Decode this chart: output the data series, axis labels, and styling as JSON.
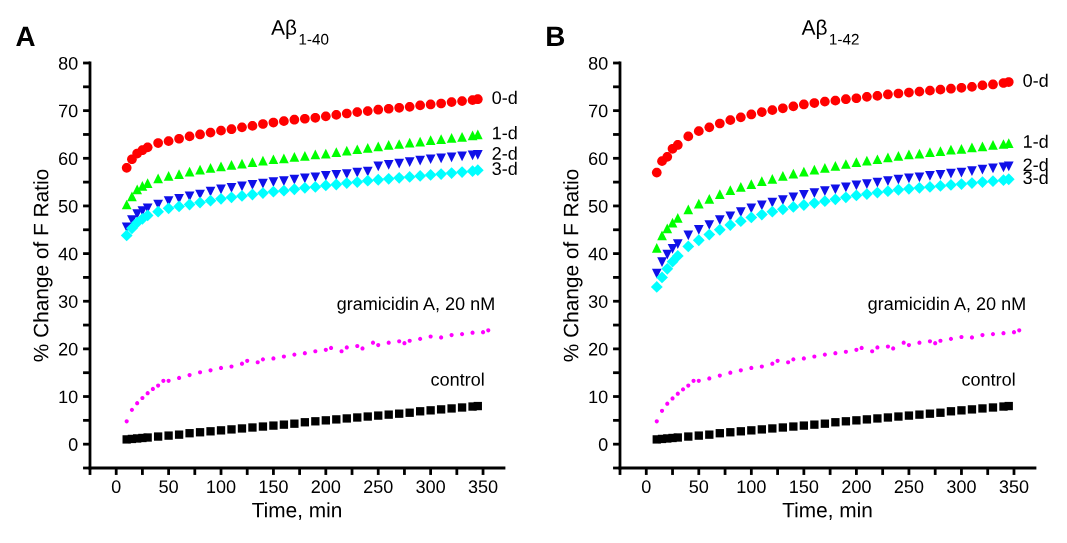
{
  "chart_data": [
    {
      "type": "scatter",
      "title": "Aβ$_{1-40}$",
      "annotations": [
        "A"
      ],
      "xlabel": "Time, min",
      "ylabel": "% Change of F Ratio",
      "xlim": [
        -25,
        370
      ],
      "ylim": [
        -5,
        80
      ],
      "xticks": [
        {
          "value": -25,
          "label": null
        },
        0,
        {
          "value": 25,
          "label": null
        },
        50,
        {
          "value": 75,
          "label": null
        },
        100,
        {
          "value": 125,
          "label": null
        },
        150,
        {
          "value": 175,
          "label": null
        },
        200,
        {
          "value": 225,
          "label": null
        },
        250,
        {
          "value": 275,
          "label": null
        },
        300,
        {
          "value": 325,
          "label": null
        },
        350
      ],
      "yticks": [
        {
          "value": -5,
          "label": null
        },
        0,
        {
          "value": 5,
          "label": null
        },
        10,
        {
          "value": 15,
          "label": null
        },
        20,
        {
          "value": 25,
          "label": null
        },
        30,
        {
          "value": 35,
          "label": null
        },
        40,
        {
          "value": 45,
          "label": null
        },
        50,
        {
          "value": 55,
          "label": null
        },
        60,
        {
          "value": 65,
          "label": null
        },
        70,
        {
          "value": 75,
          "label": null
        },
        80
      ],
      "grid": false,
      "legend": false,
      "x": [
        10,
        15,
        20,
        25,
        30,
        40,
        50,
        60,
        70,
        80,
        90,
        100,
        110,
        120,
        130,
        140,
        150,
        160,
        170,
        180,
        190,
        200,
        210,
        220,
        230,
        240,
        250,
        260,
        270,
        280,
        290,
        300,
        310,
        320,
        330,
        340,
        345
      ],
      "series": [
        {
          "name": "0-d",
          "color": "#ff0000",
          "marker": "circle",
          "values": [
            58,
            59.8,
            61,
            61.7,
            62.3,
            63.2,
            63.6,
            64.1,
            64.6,
            65,
            65.4,
            65.8,
            66.1,
            66.5,
            66.8,
            67.2,
            67.5,
            67.8,
            68.1,
            68.3,
            68.5,
            68.8,
            69.1,
            69.4,
            69.7,
            69.9,
            70.2,
            70.4,
            70.6,
            70.8,
            71.1,
            71.3,
            71.5,
            71.8,
            72,
            72.2,
            72.4
          ]
        },
        {
          "name": "1-d",
          "color": "#00ff00",
          "marker": "triangle",
          "values": [
            50.3,
            52,
            53.5,
            54.2,
            54.8,
            55.8,
            56.3,
            56.7,
            57.2,
            57.6,
            58,
            58.3,
            58.6,
            58.9,
            59.2,
            59.5,
            59.8,
            60,
            60.3,
            60.5,
            60.8,
            61,
            61.3,
            61.6,
            61.9,
            62.2,
            62.5,
            62.8,
            63,
            63.3,
            63.5,
            63.8,
            64,
            64.3,
            64.5,
            64.8,
            65
          ]
        },
        {
          "name": "2-d",
          "color": "#1010e8",
          "marker": "triangle_down",
          "values": [
            45.5,
            47,
            48.3,
            48.9,
            49.5,
            50.3,
            51,
            51.5,
            52,
            52.4,
            53,
            53.5,
            53.8,
            54.1,
            54.4,
            54.7,
            55,
            55.2,
            55.5,
            55.8,
            56,
            56.3,
            56.5,
            56.7,
            57,
            57.2,
            58.3,
            58.6,
            58.9,
            59.2,
            59.5,
            59.8,
            60,
            60.2,
            60.4,
            60.6,
            60.7
          ]
        },
        {
          "name": "3-d",
          "color": "#00ffff",
          "marker": "diamond",
          "values": [
            43.8,
            45.3,
            46.5,
            47.3,
            48,
            48.8,
            49.5,
            49.9,
            50.3,
            50.7,
            51.1,
            51.5,
            51.8,
            52.1,
            52.4,
            52.7,
            53,
            53.2,
            53.5,
            53.8,
            54,
            54.3,
            54.5,
            54.8,
            55,
            55.3,
            55.5,
            55.7,
            55.9,
            56.1,
            56.3,
            56.5,
            56.7,
            56.9,
            57.1,
            57.3,
            57.5
          ]
        },
        {
          "name": "gramicidin A, 20 nM",
          "color": "#ff00ff",
          "marker": "dot",
          "x": [
            10,
            15,
            20,
            25,
            30,
            35,
            40,
            45,
            50,
            60,
            70,
            80,
            90,
            100,
            110,
            120,
            125,
            135,
            140,
            150,
            160,
            170,
            180,
            190,
            200,
            205,
            215,
            220,
            230,
            235,
            245,
            250,
            260,
            270,
            275,
            280,
            290,
            300,
            310,
            320,
            330,
            340,
            350,
            355
          ],
          "values": [
            4.8,
            7.2,
            8.6,
            9.7,
            10.7,
            11.6,
            12.3,
            13.3,
            13.3,
            13.9,
            14.5,
            15.1,
            15.5,
            16,
            16.3,
            16.9,
            17.5,
            17.2,
            17.8,
            18,
            18.4,
            18.8,
            19.1,
            19.5,
            19.8,
            20.2,
            19.5,
            20.3,
            20.6,
            20.1,
            21.3,
            20.8,
            21.3,
            21.6,
            21.2,
            21.7,
            22.1,
            22.6,
            22.4,
            22.9,
            23.1,
            23.4,
            23.5,
            23.9
          ]
        },
        {
          "name": "control",
          "color": "#000000",
          "marker": "square",
          "values": [
            1,
            1.1,
            1.2,
            1.3,
            1.4,
            1.6,
            1.8,
            2,
            2.3,
            2.5,
            2.7,
            2.9,
            3.1,
            3.3,
            3.5,
            3.7,
            3.9,
            4.1,
            4.3,
            4.6,
            4.8,
            5,
            5.2,
            5.4,
            5.6,
            5.8,
            6,
            6.2,
            6.4,
            6.6,
            6.9,
            7.1,
            7.3,
            7.5,
            7.7,
            7.9,
            8
          ]
        }
      ]
    },
    {
      "type": "scatter",
      "title": "Aβ$_{1-42}$",
      "annotations": [
        "B"
      ],
      "xlabel": "Time, min",
      "ylabel": "% Change of F Ratio",
      "xlim": [
        -25,
        370
      ],
      "ylim": [
        -5,
        80
      ],
      "xticks": [
        {
          "value": -25,
          "label": null
        },
        0,
        {
          "value": 25,
          "label": null
        },
        50,
        {
          "value": 75,
          "label": null
        },
        100,
        {
          "value": 125,
          "label": null
        },
        150,
        {
          "value": 175,
          "label": null
        },
        200,
        {
          "value": 225,
          "label": null
        },
        250,
        {
          "value": 275,
          "label": null
        },
        300,
        {
          "value": 325,
          "label": null
        },
        350
      ],
      "yticks": [
        {
          "value": -5,
          "label": null
        },
        0,
        {
          "value": 5,
          "label": null
        },
        10,
        {
          "value": 15,
          "label": null
        },
        20,
        {
          "value": 25,
          "label": null
        },
        30,
        {
          "value": 35,
          "label": null
        },
        40,
        {
          "value": 45,
          "label": null
        },
        50,
        {
          "value": 55,
          "label": null
        },
        60,
        {
          "value": 65,
          "label": null
        },
        70,
        {
          "value": 75,
          "label": null
        },
        80
      ],
      "grid": false,
      "legend": false,
      "x": [
        10,
        15,
        20,
        25,
        30,
        40,
        50,
        60,
        70,
        80,
        90,
        100,
        110,
        120,
        130,
        140,
        150,
        160,
        170,
        180,
        190,
        200,
        210,
        220,
        230,
        240,
        250,
        260,
        270,
        280,
        290,
        300,
        310,
        320,
        330,
        340,
        345
      ],
      "series": [
        {
          "name": "0-d",
          "color": "#ff0000",
          "marker": "circle",
          "values": [
            57,
            59.4,
            60.3,
            62,
            62.8,
            64.6,
            65.7,
            66.5,
            67.3,
            68,
            68.6,
            69.2,
            69.7,
            70.1,
            70.5,
            70.9,
            71.3,
            71.6,
            71.9,
            72.1,
            72.4,
            72.6,
            72.9,
            73.1,
            73.4,
            73.6,
            73.8,
            74,
            74.2,
            74.4,
            74.6,
            74.8,
            75,
            75.3,
            75.5,
            75.8,
            76
          ]
        },
        {
          "name": "1-d",
          "color": "#00ff00",
          "marker": "triangle",
          "values": [
            41.2,
            43.8,
            45.3,
            46.5,
            47.5,
            49.3,
            50.5,
            51.5,
            52.5,
            53.3,
            54,
            54.6,
            55.2,
            55.7,
            56.3,
            56.8,
            57.2,
            57.6,
            58,
            58.4,
            58.8,
            59.2,
            59.5,
            59.8,
            60.2,
            60.5,
            60.8,
            61,
            61.3,
            61.5,
            61.8,
            62,
            62.3,
            62.5,
            62.8,
            63,
            63.2
          ]
        },
        {
          "name": "2-d",
          "color": "#1010e8",
          "marker": "triangle_down",
          "values": [
            35.8,
            38.2,
            39.8,
            41,
            42,
            43.8,
            45,
            46,
            47,
            47.8,
            48.7,
            49.5,
            50.1,
            50.7,
            51.2,
            51.8,
            52.3,
            52.7,
            53.1,
            53.5,
            53.9,
            54.3,
            54.6,
            54.9,
            55.2,
            55.5,
            55.8,
            56,
            56.3,
            56.5,
            56.8,
            57,
            57.3,
            57.6,
            57.9,
            58.1,
            58.3
          ]
        },
        {
          "name": "3-d",
          "color": "#00ffff",
          "marker": "diamond",
          "values": [
            33,
            35,
            36.8,
            38.3,
            39.5,
            41.5,
            42.8,
            44,
            45,
            46,
            46.8,
            47.6,
            48.2,
            48.8,
            49.3,
            49.8,
            50.2,
            50.6,
            51,
            51.4,
            51.8,
            52.2,
            52.5,
            52.8,
            53.1,
            53.4,
            53.6,
            53.8,
            54,
            54.2,
            54.4,
            54.6,
            54.8,
            55,
            55.2,
            55.4,
            55.6
          ]
        },
        {
          "name": "gramicidin A, 20 nM",
          "color": "#ff00ff",
          "marker": "dot",
          "x": [
            10,
            15,
            20,
            25,
            30,
            35,
            40,
            45,
            50,
            60,
            70,
            80,
            90,
            100,
            110,
            120,
            125,
            135,
            140,
            150,
            160,
            170,
            180,
            190,
            200,
            205,
            215,
            220,
            230,
            235,
            245,
            250,
            260,
            270,
            275,
            280,
            290,
            300,
            310,
            320,
            330,
            340,
            350,
            355
          ],
          "values": [
            4.8,
            7,
            8.5,
            9.6,
            10.6,
            11.5,
            12.3,
            13.3,
            13.3,
            13.8,
            14.4,
            15,
            15.5,
            16,
            16.3,
            16.9,
            17.5,
            17.2,
            17.8,
            18,
            18.4,
            18.8,
            19.1,
            19.4,
            19.8,
            20.2,
            19.5,
            20.3,
            20.5,
            20.1,
            21.3,
            20.8,
            21.3,
            21.6,
            21.2,
            21.7,
            22.1,
            22.5,
            22.4,
            22.9,
            23.1,
            23.3,
            23.5,
            23.9
          ]
        },
        {
          "name": "control",
          "color": "#000000",
          "marker": "square",
          "values": [
            1,
            1.1,
            1.2,
            1.3,
            1.4,
            1.6,
            1.8,
            2,
            2.3,
            2.5,
            2.7,
            2.9,
            3.1,
            3.3,
            3.5,
            3.7,
            3.9,
            4.1,
            4.3,
            4.6,
            4.8,
            5,
            5.2,
            5.4,
            5.6,
            5.8,
            6,
            6.2,
            6.4,
            6.6,
            6.9,
            7.1,
            7.3,
            7.5,
            7.7,
            7.9,
            8
          ]
        }
      ]
    }
  ]
}
